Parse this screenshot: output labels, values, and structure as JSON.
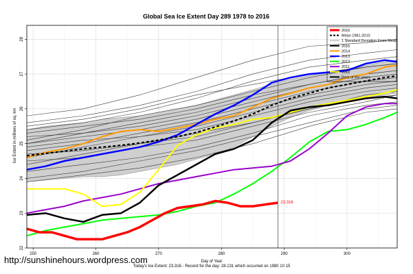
{
  "watermark": "http://sunshinehours.wordpress.com",
  "chart_data": {
    "type": "line",
    "title": "Global Sea Ice Extent Day 289 1978 to 2016",
    "xlabel": "Day of Year",
    "ylabel": "Ice Extent in millions of sq. km",
    "footer": "Today's Ice Extent: 23.316  -  Record for the day: 28.131 which occurred on 1980 10 15",
    "xlim": [
      249,
      308
    ],
    "ylim": [
      22,
      28.4
    ],
    "x_ticks": [
      250,
      260,
      270,
      280,
      290,
      300
    ],
    "y_ticks": [
      22,
      23,
      24,
      25,
      26,
      27,
      28
    ],
    "grid": true,
    "marker_line_x": 289,
    "legend_position": "top-right",
    "annotation": {
      "text": "23.316",
      "x": 289,
      "y": 23.316,
      "color": "#ff0000"
    },
    "legend": [
      {
        "label": "2016",
        "color": "#ff0000"
      },
      {
        "label": "Mean 1981-2010",
        "color": "#000000"
      },
      {
        "label": "1 Standard Deviation From Mean",
        "color": "#cccccc"
      },
      {
        "label": "2015",
        "color": "#000000"
      },
      {
        "label": "2014",
        "color": "#ff9900"
      },
      {
        "label": "2013",
        "color": "#0000ff"
      },
      {
        "label": "2012",
        "color": "#00ff00"
      },
      {
        "label": "2011",
        "color": "#9900cc"
      },
      {
        "label": "2010",
        "color": "#ffff00"
      },
      {
        "label": "Rest of the years",
        "color": "#000000"
      }
    ],
    "band": {
      "x": [
        249,
        252,
        255,
        258,
        261,
        264,
        267,
        270,
        273,
        276,
        279,
        282,
        285,
        288,
        291,
        294,
        297,
        300,
        303,
        306,
        308
      ],
      "upper": [
        25.4,
        25.5,
        25.55,
        25.6,
        25.7,
        25.75,
        25.8,
        25.9,
        26.0,
        26.1,
        26.25,
        26.4,
        26.55,
        26.7,
        26.85,
        26.95,
        27.05,
        27.15,
        27.25,
        27.35,
        27.4
      ],
      "lower": [
        23.9,
        23.95,
        24.0,
        24.05,
        24.05,
        24.1,
        24.2,
        24.3,
        24.4,
        24.55,
        24.7,
        24.9,
        25.2,
        25.5,
        25.75,
        25.95,
        26.1,
        26.2,
        26.3,
        26.4,
        26.45
      ]
    },
    "mean": {
      "x": [
        249,
        252,
        255,
        258,
        261,
        264,
        267,
        270,
        273,
        276,
        279,
        282,
        285,
        288,
        291,
        294,
        297,
        300,
        303,
        306,
        308
      ],
      "values": [
        24.65,
        24.72,
        24.78,
        24.85,
        24.9,
        24.95,
        25.02,
        25.1,
        25.2,
        25.32,
        25.48,
        25.65,
        25.85,
        26.1,
        26.3,
        26.45,
        26.6,
        26.7,
        26.8,
        26.9,
        26.95
      ]
    },
    "series": [
      {
        "name": "2016",
        "color": "#ff0000",
        "width": 3.5,
        "x": [
          249,
          251,
          253,
          255,
          257,
          259,
          261,
          263,
          265,
          267,
          269,
          271,
          273,
          275,
          277,
          279,
          281,
          283,
          285,
          287,
          289
        ],
        "values": [
          22.55,
          22.45,
          22.45,
          22.35,
          22.25,
          22.25,
          22.25,
          22.35,
          22.45,
          22.6,
          22.8,
          23.0,
          23.15,
          23.2,
          23.25,
          23.35,
          23.3,
          23.2,
          23.2,
          23.25,
          23.3
        ]
      },
      {
        "name": "2015",
        "color": "#000000",
        "width": 2.5,
        "x": [
          249,
          252,
          255,
          258,
          261,
          264,
          267,
          270,
          273,
          276,
          279,
          282,
          285,
          288,
          291,
          294,
          297,
          300,
          303,
          306,
          308
        ],
        "values": [
          22.95,
          23.0,
          22.85,
          22.75,
          22.95,
          23.0,
          23.3,
          23.8,
          24.1,
          24.4,
          24.7,
          24.85,
          25.1,
          25.6,
          25.95,
          26.05,
          26.1,
          26.2,
          26.3,
          26.35,
          26.3
        ]
      },
      {
        "name": "2014",
        "color": "#ff9900",
        "width": 2,
        "x": [
          249,
          252,
          255,
          258,
          261,
          264,
          267,
          270,
          273,
          276,
          279,
          282,
          285,
          288,
          291,
          294,
          297,
          300,
          303,
          306,
          308
        ],
        "values": [
          24.6,
          24.75,
          24.85,
          25.0,
          25.2,
          25.35,
          25.4,
          25.35,
          25.45,
          25.55,
          25.7,
          25.8,
          26.05,
          26.3,
          26.45,
          26.6,
          26.7,
          26.9,
          27.0,
          27.2,
          27.25
        ]
      },
      {
        "name": "2013",
        "color": "#0000ff",
        "width": 2.5,
        "x": [
          249,
          252,
          255,
          258,
          261,
          264,
          267,
          270,
          273,
          276,
          279,
          282,
          285,
          288,
          291,
          294,
          297,
          300,
          303,
          306,
          308
        ],
        "values": [
          24.25,
          24.35,
          24.5,
          24.6,
          24.7,
          24.8,
          24.9,
          25.05,
          25.25,
          25.55,
          25.85,
          26.1,
          26.4,
          26.75,
          26.9,
          27.0,
          27.05,
          27.1,
          27.3,
          27.4,
          27.35
        ]
      },
      {
        "name": "2012",
        "color": "#00ff00",
        "width": 2,
        "x": [
          249,
          252,
          255,
          258,
          261,
          264,
          267,
          270,
          273,
          276,
          279,
          282,
          285,
          288,
          291,
          294,
          297,
          300,
          303,
          306,
          308
        ],
        "values": [
          22.35,
          22.5,
          22.6,
          22.7,
          22.8,
          22.85,
          22.9,
          22.95,
          23.05,
          23.2,
          23.3,
          23.55,
          23.85,
          24.2,
          24.6,
          25.05,
          25.35,
          25.4,
          25.55,
          25.75,
          25.9
        ]
      },
      {
        "name": "2011",
        "color": "#9900cc",
        "width": 2,
        "x": [
          249,
          252,
          255,
          258,
          261,
          264,
          267,
          270,
          273,
          276,
          279,
          282,
          285,
          288,
          291,
          294,
          297,
          300,
          303,
          306,
          308
        ],
        "values": [
          23.0,
          23.1,
          23.2,
          23.35,
          23.45,
          23.55,
          23.7,
          23.85,
          23.95,
          24.05,
          24.15,
          24.25,
          24.3,
          24.35,
          24.5,
          24.85,
          25.3,
          25.8,
          26.05,
          26.15,
          26.15
        ]
      },
      {
        "name": "2010",
        "color": "#ffff00",
        "width": 2,
        "x": [
          249,
          252,
          255,
          258,
          261,
          264,
          267,
          270,
          273,
          276,
          279,
          282,
          285,
          288,
          291,
          294,
          297,
          300,
          303,
          306,
          308
        ],
        "values": [
          23.7,
          23.7,
          23.7,
          23.55,
          23.2,
          23.25,
          23.6,
          24.25,
          24.95,
          25.25,
          25.45,
          25.55,
          25.7,
          25.75,
          25.9,
          26.05,
          26.15,
          26.25,
          26.35,
          26.45,
          26.55
        ]
      }
    ],
    "other_years": [
      {
        "x": [
          249,
          258,
          267,
          276,
          285,
          294,
          303,
          308
        ],
        "values": [
          25.2,
          25.3,
          25.5,
          25.8,
          26.2,
          26.6,
          26.9,
          27.0
        ]
      },
      {
        "x": [
          249,
          258,
          267,
          276,
          285,
          294,
          303,
          308
        ],
        "values": [
          25.0,
          25.2,
          25.4,
          25.7,
          26.1,
          26.5,
          26.8,
          26.9
        ]
      },
      {
        "x": [
          249,
          258,
          267,
          276,
          285,
          294,
          303,
          308
        ],
        "values": [
          24.8,
          25.0,
          25.3,
          25.6,
          26.0,
          26.4,
          26.7,
          26.8
        ]
      },
      {
        "x": [
          249,
          258,
          267,
          276,
          285,
          294,
          303,
          308
        ],
        "values": [
          25.4,
          25.6,
          25.9,
          26.3,
          26.8,
          27.2,
          27.4,
          27.5
        ]
      },
      {
        "x": [
          249,
          258,
          267,
          276,
          285,
          294,
          303,
          308
        ],
        "values": [
          24.6,
          24.9,
          25.2,
          25.5,
          25.9,
          26.3,
          26.6,
          26.7
        ]
      },
      {
        "x": [
          249,
          258,
          267,
          276,
          285,
          294,
          303,
          308
        ],
        "values": [
          25.6,
          25.8,
          26.1,
          26.5,
          27.0,
          27.4,
          27.6,
          27.7
        ]
      },
      {
        "x": [
          249,
          258,
          267,
          276,
          285,
          294,
          303,
          308
        ],
        "values": [
          24.4,
          24.7,
          25.0,
          25.3,
          25.6,
          26.0,
          26.3,
          26.4
        ]
      },
      {
        "x": [
          249,
          258,
          267,
          276,
          285,
          294,
          303,
          308
        ],
        "values": [
          25.8,
          26.0,
          26.4,
          26.9,
          27.4,
          27.8,
          27.9,
          28.0
        ]
      },
      {
        "x": [
          249,
          258,
          267,
          276,
          285,
          294,
          303,
          308
        ],
        "values": [
          24.2,
          24.4,
          24.6,
          24.9,
          25.3,
          25.8,
          26.1,
          26.2
        ]
      },
      {
        "x": [
          249,
          258,
          267,
          276,
          285,
          294,
          303,
          308
        ],
        "values": [
          25.1,
          25.4,
          25.8,
          26.1,
          26.5,
          26.9,
          27.2,
          27.3
        ]
      },
      {
        "x": [
          249,
          258,
          267,
          276,
          285,
          294,
          303,
          308
        ],
        "values": [
          24.9,
          25.1,
          25.2,
          25.4,
          25.8,
          26.2,
          26.5,
          26.6
        ]
      },
      {
        "x": [
          249,
          258,
          267,
          276,
          285,
          294,
          303,
          308
        ],
        "values": [
          25.3,
          25.5,
          25.7,
          26.0,
          26.4,
          26.7,
          27.0,
          27.1
        ]
      },
      {
        "x": [
          249,
          258,
          267,
          276,
          285,
          294,
          303,
          308
        ],
        "values": [
          24.0,
          24.2,
          24.5,
          24.8,
          25.2,
          25.6,
          26.0,
          26.1
        ]
      },
      {
        "x": [
          249,
          258,
          267,
          276,
          285,
          294,
          303,
          308
        ],
        "values": [
          24.7,
          24.8,
          25.0,
          25.2,
          25.6,
          26.0,
          26.4,
          26.5
        ]
      },
      {
        "x": [
          249,
          258,
          267,
          276,
          285,
          294,
          303,
          308
        ],
        "values": [
          25.5,
          25.7,
          26.0,
          26.4,
          26.7,
          27.0,
          27.2,
          27.3
        ]
      },
      {
        "x": [
          249,
          258,
          267,
          276,
          285,
          294,
          303,
          308
        ],
        "values": [
          23.9,
          24.1,
          24.3,
          24.6,
          25.0,
          25.5,
          25.9,
          26.0
        ]
      },
      {
        "x": [
          249,
          258,
          267,
          276,
          285,
          294,
          303,
          308
        ],
        "values": [
          25.0,
          25.3,
          25.6,
          25.9,
          26.3,
          26.7,
          27.0,
          27.1
        ]
      },
      {
        "x": [
          249,
          258,
          267,
          276,
          285,
          294,
          303,
          308
        ],
        "values": [
          24.5,
          24.6,
          24.9,
          25.1,
          25.5,
          25.9,
          26.2,
          26.4
        ]
      }
    ]
  }
}
